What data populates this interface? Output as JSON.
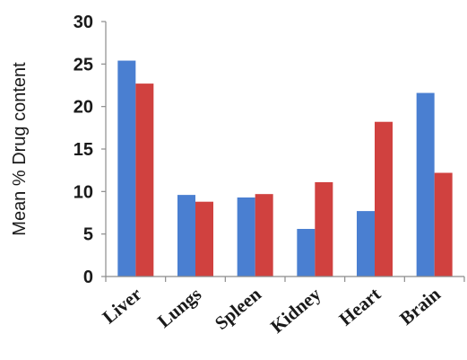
{
  "chart_data": {
    "type": "bar",
    "title": "",
    "xlabel": "",
    "ylabel": "Mean % Drug content",
    "categories": [
      "Liver",
      "Lungs",
      "Spleen",
      "Kidney",
      "Heart",
      "Brain"
    ],
    "series": [
      {
        "color": "#4a7fd1",
        "values": [
          25.4,
          9.6,
          9.3,
          5.6,
          7.7,
          21.6
        ]
      },
      {
        "color": "#d0413f",
        "values": [
          22.7,
          8.8,
          9.7,
          11.1,
          18.2,
          12.2
        ]
      }
    ],
    "ylim": [
      0,
      30
    ],
    "yticks": [
      "0",
      "5",
      "10",
      "15",
      "20",
      "25",
      "30"
    ],
    "grid": false,
    "legend": "none"
  }
}
